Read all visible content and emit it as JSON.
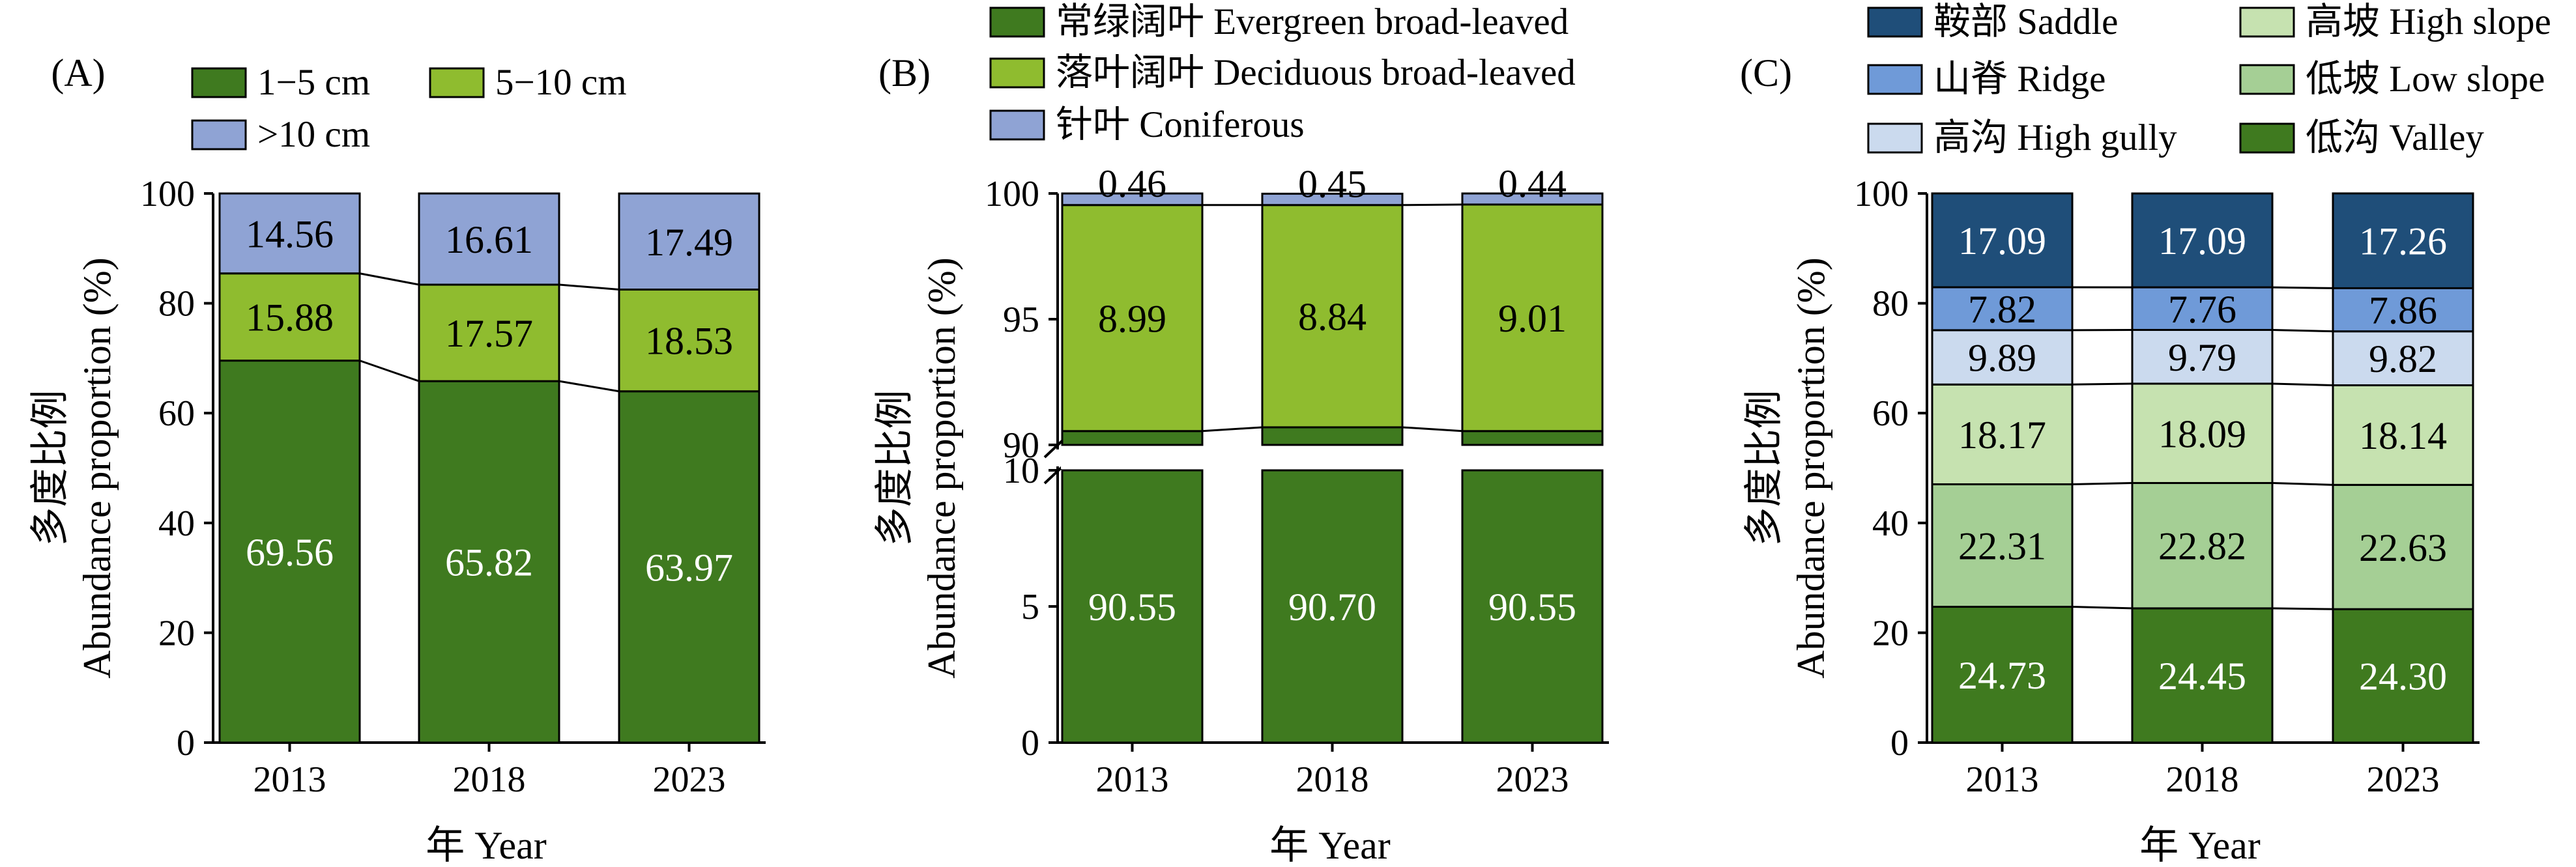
{
  "chart_data": [
    {
      "panel_label": "(A)",
      "type": "bar",
      "stacked": true,
      "categories": [
        "2013",
        "2018",
        "2023"
      ],
      "series": [
        {
          "name": "1−5 cm",
          "values": [
            69.56,
            65.82,
            63.97
          ],
          "color": "#3f7a1f",
          "label_color": "#ffffff"
        },
        {
          "name": "5−10 cm",
          "values": [
            15.88,
            17.57,
            18.53
          ],
          "color": "#8fbc2f",
          "label_color": "#000000"
        },
        {
          "name": ">10 cm",
          "values": [
            14.56,
            16.61,
            17.49
          ],
          "color": "#8fa3d4",
          "label_color": "#000000"
        }
      ],
      "xlabel": "年 Year",
      "ylabel_cn": "多度比例",
      "ylabel_en": "Abundance proportion (%)",
      "ylim": [
        0,
        100
      ],
      "yticks": [
        0,
        20,
        40,
        60,
        80,
        100
      ],
      "grid": false,
      "legend_position": "top"
    },
    {
      "panel_label": "(B)",
      "type": "bar",
      "stacked": true,
      "broken_axis": true,
      "categories": [
        "2013",
        "2018",
        "2023"
      ],
      "series": [
        {
          "name": "常绿阔叶 Evergreen broad-leaved",
          "values": [
            90.55,
            90.7,
            90.55
          ],
          "color": "#3f7a1f",
          "label_color": "#ffffff"
        },
        {
          "name": "落叶阔叶 Deciduous broad-leaved",
          "values": [
            8.99,
            8.84,
            9.01
          ],
          "color": "#8fbc2f",
          "label_color": "#000000"
        },
        {
          "name": "针叶 Coniferous",
          "values": [
            0.46,
            0.45,
            0.44
          ],
          "color": "#8fa3d4",
          "label_color": "#000000"
        }
      ],
      "xlabel": "年 Year",
      "ylabel_cn": "多度比例",
      "ylabel_en": "Abundance proportion (%)",
      "ylim_lower": [
        0,
        10
      ],
      "ylim_upper": [
        90,
        100
      ],
      "yticks_lower": [
        0,
        5,
        10
      ],
      "yticks_upper": [
        90,
        95,
        100
      ],
      "grid": false,
      "legend_position": "top"
    },
    {
      "panel_label": "(C)",
      "type": "bar",
      "stacked": true,
      "categories": [
        "2013",
        "2018",
        "2023"
      ],
      "series": [
        {
          "name": "低沟 Valley",
          "values": [
            24.73,
            24.45,
            24.3
          ],
          "color": "#3f7a1f",
          "label_color": "#ffffff"
        },
        {
          "name": "低坡 Low slope",
          "values": [
            22.31,
            22.82,
            22.63
          ],
          "color": "#a5cf95",
          "label_color": "#000000"
        },
        {
          "name": "高坡 High slope",
          "values": [
            18.17,
            18.09,
            18.14
          ],
          "color": "#c6e2b0",
          "label_color": "#000000"
        },
        {
          "name": "高沟 High gully",
          "values": [
            9.89,
            9.79,
            9.82
          ],
          "color": "#cbdaee",
          "label_color": "#000000"
        },
        {
          "name": "山脊 Ridge",
          "values": [
            7.82,
            7.76,
            7.86
          ],
          "color": "#6f9ad8",
          "label_color": "#000000"
        },
        {
          "name": "鞍部 Saddle",
          "values": [
            17.09,
            17.09,
            17.26
          ],
          "color": "#1f4e79",
          "label_color": "#ffffff"
        }
      ],
      "legend_order": [
        "鞍部 Saddle",
        "高坡 High slope",
        "山脊 Ridge",
        "低坡 Low slope",
        "高沟 High gully",
        "低沟 Valley"
      ],
      "xlabel": "年 Year",
      "ylabel_cn": "多度比例",
      "ylabel_en": "Abundance proportion (%)",
      "ylim": [
        0,
        100
      ],
      "yticks": [
        0,
        20,
        40,
        60,
        80,
        100
      ],
      "grid": false,
      "legend_position": "top"
    }
  ]
}
